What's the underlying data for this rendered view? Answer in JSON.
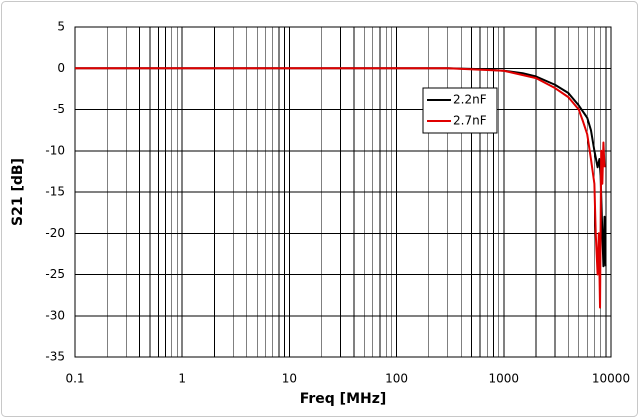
{
  "chart_data": {
    "type": "line",
    "xlabel": "Freq [MHz]",
    "ylabel": "S21 [dB]",
    "xscale": "log",
    "grid": true,
    "legend": "upper-right",
    "xlim": [
      0.1,
      10000
    ],
    "ylim": [
      -35,
      5
    ],
    "xticks": [
      0.1,
      1,
      10,
      100,
      1000,
      10000
    ],
    "xminorticks": [
      0.2,
      0.3,
      0.4,
      0.5,
      0.6,
      0.7,
      0.8,
      0.9,
      2,
      3,
      4,
      5,
      6,
      7,
      8,
      9,
      20,
      30,
      40,
      50,
      60,
      70,
      80,
      90,
      200,
      300,
      400,
      500,
      600,
      700,
      800,
      900,
      2000,
      3000,
      4000,
      5000,
      6000,
      7000,
      8000,
      9000
    ],
    "yticks": [
      5,
      0,
      -5,
      -10,
      -15,
      -20,
      -25,
      -30,
      -35
    ],
    "series": [
      {
        "name": "2.2nF",
        "color": "#000000",
        "x": [
          0.1,
          100,
          300,
          600,
          1000,
          1500,
          2000,
          3000,
          4000,
          5000,
          6000,
          6500,
          7000,
          7500,
          7800,
          8000,
          8300,
          8500,
          8700,
          8900
        ],
        "values": [
          0,
          0,
          0,
          -0.1,
          -0.3,
          -0.6,
          -1.0,
          -2.0,
          -3.0,
          -4.5,
          -6,
          -7.5,
          -10,
          -12,
          -11,
          -13,
          -20,
          -24,
          -18,
          -24
        ]
      },
      {
        "name": "2.7nF",
        "color": "#e00000",
        "x": [
          0.1,
          100,
          300,
          1000,
          2000,
          3000,
          4000,
          5000,
          5500,
          6000,
          6500,
          7000,
          7200,
          7500,
          7700,
          7900,
          8100,
          8300,
          8500,
          8700
        ],
        "values": [
          0,
          0,
          0,
          -0.3,
          -1.2,
          -2.4,
          -3.5,
          -5,
          -6.5,
          -8,
          -11,
          -14,
          -20,
          -25,
          -20,
          -29,
          -10,
          -14,
          -9,
          -12
        ]
      }
    ]
  }
}
